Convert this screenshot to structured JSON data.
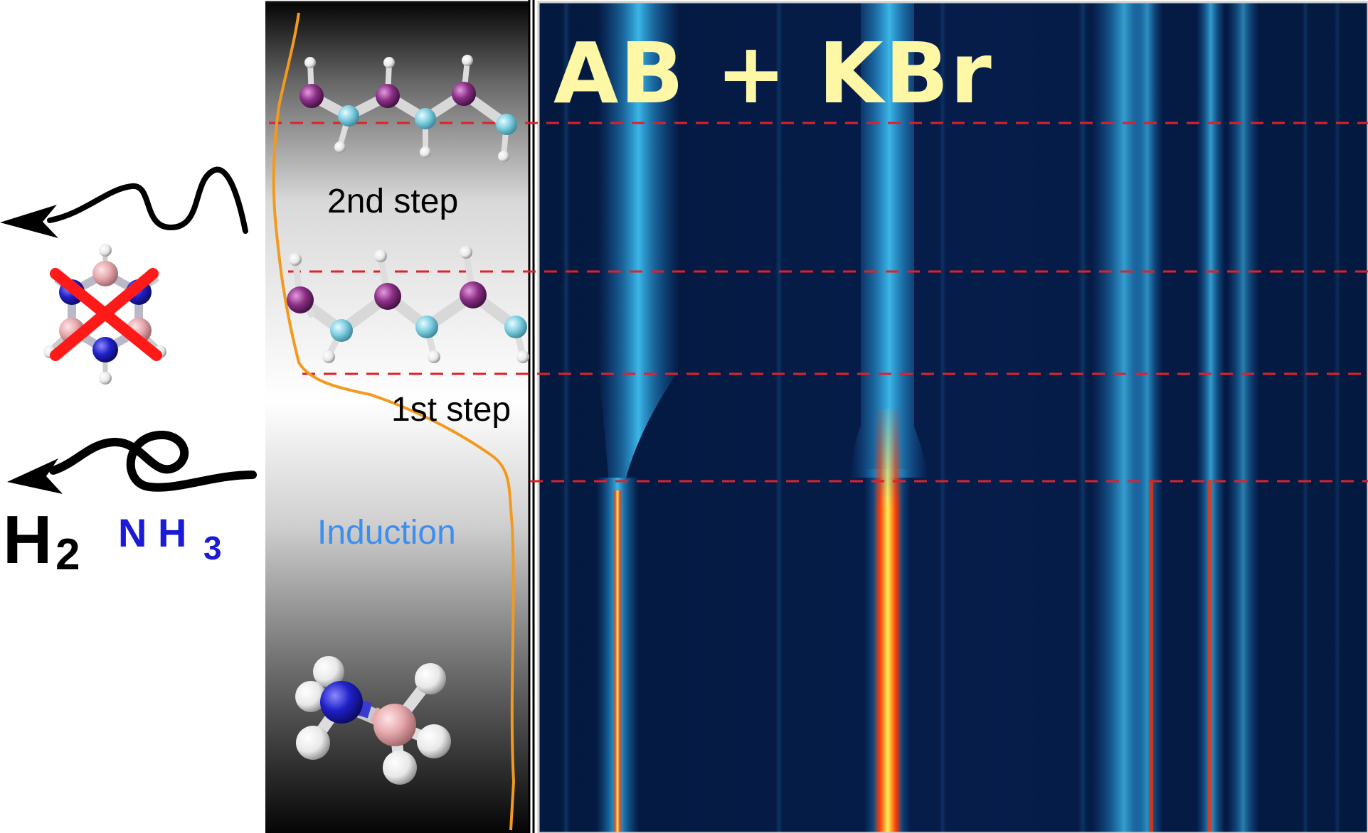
{
  "figure": {
    "title": "AB + KBr",
    "stages": {
      "second": "2nd step",
      "first": "1st step",
      "induction": "Induction"
    },
    "gases": {
      "h2_symbol": "H",
      "h2_subscript": "2",
      "nh3_symbol": "N H",
      "nh3_subscript": "3"
    }
  },
  "colors": {
    "heatmap_background": "#041a45",
    "band_cyan": "#3fbef0",
    "band_hot": "#ff1a00",
    "band_peak": "#fff15a",
    "curve": "#f39a1e",
    "dashed_line": "#e0202a",
    "title": "#fdf7a6",
    "nitrogen": "#2020c8",
    "boron": "#e6a9ad",
    "hydrogen": "#f2f2f2",
    "chain_purple": "#8a2f86",
    "chain_cyan": "#7fd0e2",
    "nh3_text": "#1a1ad8",
    "induction_text": "#3b8ff0"
  },
  "icons": {
    "emission_arrows": "curly-arrow-icon",
    "forbidden_ring": "borazine-crossed-icon",
    "ammonia_borane": "ammonia-borane-molecule-icon",
    "polymer_chains": "polymer-chain-icon"
  }
}
